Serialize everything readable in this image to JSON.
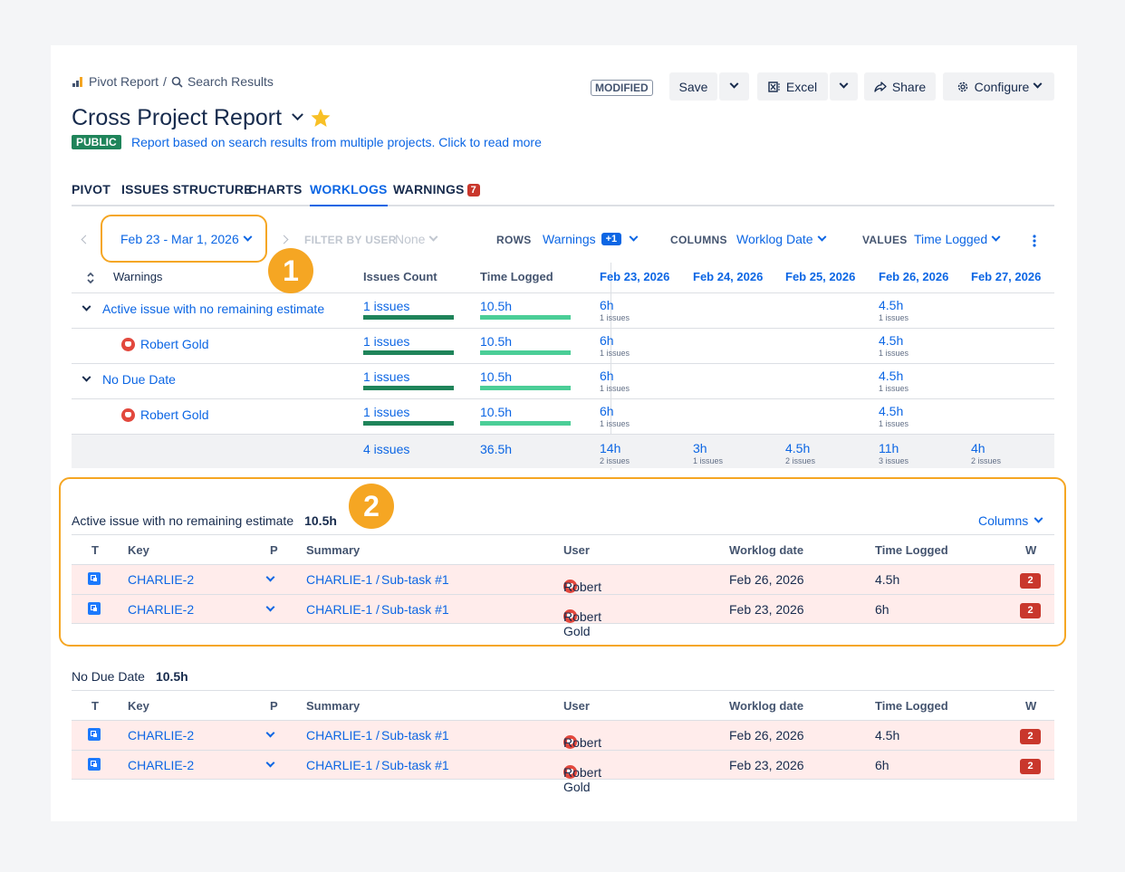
{
  "breadcrumb": {
    "root": "Pivot Report",
    "sep": "/",
    "current": "Search Results"
  },
  "toolbar": {
    "modified": "MODIFIED",
    "save": "Save",
    "excel": "Excel",
    "share": "Share",
    "configure": "Configure"
  },
  "report": {
    "title": "Cross Project Report",
    "visibility": "PUBLIC",
    "description": "Report based on search results from multiple projects. Click to read more"
  },
  "tabs": [
    {
      "label": "PIVOT"
    },
    {
      "label": "ISSUES STRUCTURE"
    },
    {
      "label": "CHARTS"
    },
    {
      "label": "WORKLOGS"
    },
    {
      "label": "WARNINGS",
      "count": "7"
    }
  ],
  "filters": {
    "date_range": "Feb 23 - Mar 1, 2026",
    "filter_by_user_label": "FILTER BY USER",
    "filter_by_user_value": "None",
    "rows_label": "ROWS",
    "rows_value": "Warnings",
    "rows_extra": "+1",
    "columns_label": "COLUMNS",
    "columns_value": "Worklog Date",
    "values_label": "VALUES",
    "values_value": "Time Logged"
  },
  "pivot": {
    "headers": {
      "group": "Warnings",
      "count": "Issues Count",
      "time": "Time Logged"
    },
    "dates": [
      "Feb 23, 2026",
      "Feb 24, 2026",
      "Feb 25, 2026",
      "Feb 26, 2026",
      "Feb 27, 2026"
    ],
    "rows": [
      {
        "label": "Active issue with no remaining estimate",
        "count": "1 issues",
        "time": "10.5h",
        "cells": [
          {
            "v": "6h",
            "s": "1 issues"
          },
          {
            "v": "",
            "s": ""
          },
          {
            "v": "",
            "s": ""
          },
          {
            "v": "4.5h",
            "s": "1 issues"
          },
          {
            "v": "",
            "s": ""
          }
        ]
      },
      {
        "label": "Robert Gold",
        "count": "1 issues",
        "time": "10.5h",
        "cells": [
          {
            "v": "6h",
            "s": "1 issues"
          },
          {
            "v": "",
            "s": ""
          },
          {
            "v": "",
            "s": ""
          },
          {
            "v": "4.5h",
            "s": "1 issues"
          },
          {
            "v": "",
            "s": ""
          }
        ]
      },
      {
        "label": "No Due Date",
        "count": "1 issues",
        "time": "10.5h",
        "cells": [
          {
            "v": "6h",
            "s": "1 issues"
          },
          {
            "v": "",
            "s": ""
          },
          {
            "v": "",
            "s": ""
          },
          {
            "v": "4.5h",
            "s": "1 issues"
          },
          {
            "v": "",
            "s": ""
          }
        ]
      },
      {
        "label": "Robert Gold",
        "count": "1 issues",
        "time": "10.5h",
        "cells": [
          {
            "v": "6h",
            "s": "1 issues"
          },
          {
            "v": "",
            "s": ""
          },
          {
            "v": "",
            "s": ""
          },
          {
            "v": "4.5h",
            "s": "1 issues"
          },
          {
            "v": "",
            "s": ""
          }
        ]
      }
    ],
    "totals": {
      "count": "4 issues",
      "time": "36.5h",
      "cells": [
        {
          "v": "14h",
          "s": "2 issues"
        },
        {
          "v": "3h",
          "s": "1 issues"
        },
        {
          "v": "4.5h",
          "s": "2 issues"
        },
        {
          "v": "11h",
          "s": "3 issues"
        },
        {
          "v": "4h",
          "s": "2 issues"
        }
      ]
    }
  },
  "details": [
    {
      "title": "Active issue with no remaining estimate",
      "total": "10.5h",
      "columns_btn": "Columns",
      "headers": {
        "t": "T",
        "key": "Key",
        "p": "P",
        "summary": "Summary",
        "user": "User",
        "date": "Worklog date",
        "time": "Time Logged",
        "w": "W"
      },
      "rows": [
        {
          "key": "CHARLIE-2",
          "summary_parent": "CHARLIE-1 /",
          "summary": "Sub-task #1",
          "user": "Robert Gold",
          "date": "Feb 26, 2026",
          "time": "4.5h",
          "w": "2"
        },
        {
          "key": "CHARLIE-2",
          "summary_parent": "CHARLIE-1 /",
          "summary": "Sub-task #1",
          "user": "Robert Gold",
          "date": "Feb 23, 2026",
          "time": "6h",
          "w": "2"
        }
      ]
    },
    {
      "title": "No Due Date",
      "total": "10.5h",
      "headers": {
        "t": "T",
        "key": "Key",
        "p": "P",
        "summary": "Summary",
        "user": "User",
        "date": "Worklog date",
        "time": "Time Logged",
        "w": "W"
      },
      "rows": [
        {
          "key": "CHARLIE-2",
          "summary_parent": "CHARLIE-1 /",
          "summary": "Sub-task #1",
          "user": "Robert Gold",
          "date": "Feb 26, 2026",
          "time": "4.5h",
          "w": "2"
        },
        {
          "key": "CHARLIE-2",
          "summary_parent": "CHARLIE-1 /",
          "summary": "Sub-task #1",
          "user": "Robert Gold",
          "date": "Feb 23, 2026",
          "time": "6h",
          "w": "2"
        }
      ]
    }
  ],
  "markers": [
    "1",
    "2"
  ],
  "colors": {
    "accent": "#0c66e4",
    "warning": "#c9372c",
    "highlight": "#f5a623",
    "bar_dark": "#1f845a",
    "bar_light": "#4bce97",
    "row_warn": "#ffeceb"
  }
}
